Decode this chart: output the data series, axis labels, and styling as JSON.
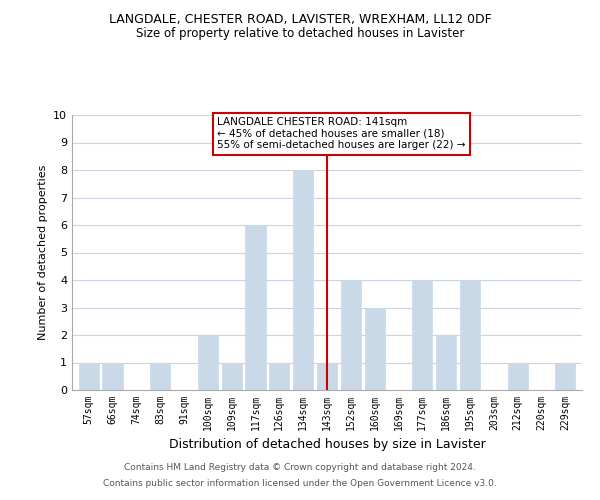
{
  "title": "LANGDALE, CHESTER ROAD, LAVISTER, WREXHAM, LL12 0DF",
  "subtitle": "Size of property relative to detached houses in Lavister",
  "xlabel": "Distribution of detached houses by size in Lavister",
  "ylabel": "Number of detached properties",
  "bar_labels": [
    "57sqm",
    "66sqm",
    "74sqm",
    "83sqm",
    "91sqm",
    "100sqm",
    "109sqm",
    "117sqm",
    "126sqm",
    "134sqm",
    "143sqm",
    "152sqm",
    "160sqm",
    "169sqm",
    "177sqm",
    "186sqm",
    "195sqm",
    "203sqm",
    "212sqm",
    "220sqm",
    "229sqm"
  ],
  "bar_values": [
    1,
    1,
    0,
    1,
    0,
    2,
    1,
    6,
    1,
    8,
    1,
    4,
    3,
    0,
    4,
    2,
    4,
    0,
    1,
    0,
    1
  ],
  "bar_color": "#c9d9e8",
  "highlight_index": 10,
  "highlight_line_color": "#cc0000",
  "ylim": [
    0,
    10
  ],
  "yticks": [
    0,
    1,
    2,
    3,
    4,
    5,
    6,
    7,
    8,
    9,
    10
  ],
  "annotation_title": "LANGDALE CHESTER ROAD: 141sqm",
  "annotation_line1": "← 45% of detached houses are smaller (18)",
  "annotation_line2": "55% of semi-detached houses are larger (22) →",
  "annotation_box_color": "#ffffff",
  "annotation_border_color": "#cc0000",
  "footer_line1": "Contains HM Land Registry data © Crown copyright and database right 2024.",
  "footer_line2": "Contains public sector information licensed under the Open Government Licence v3.0.",
  "background_color": "#ffffff",
  "grid_color": "#c8d4e0"
}
